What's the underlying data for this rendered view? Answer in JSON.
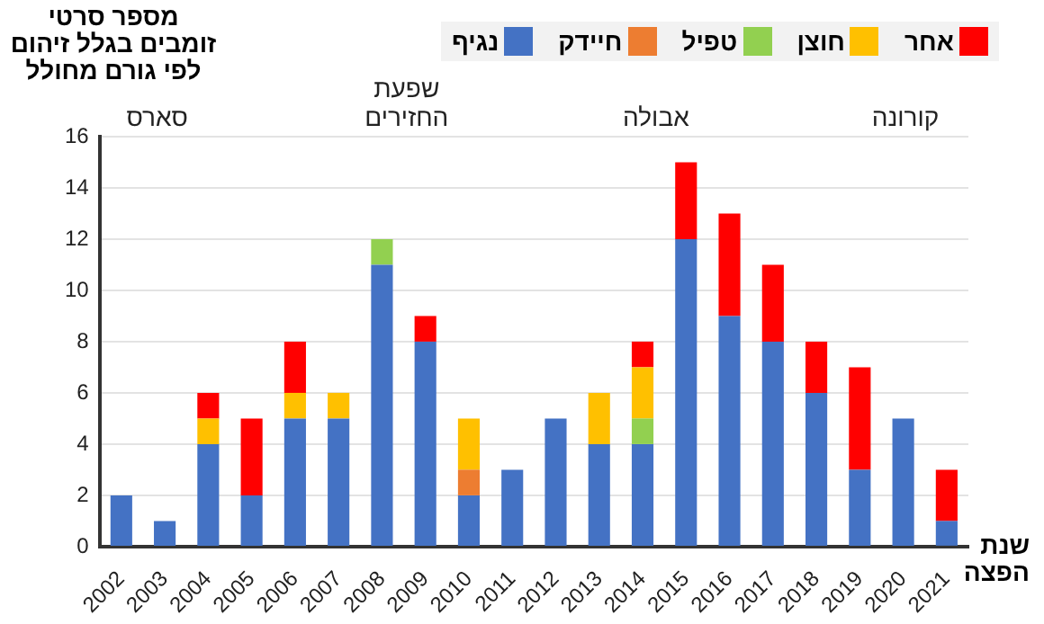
{
  "chart_data": {
    "type": "bar",
    "stacked": true,
    "ylabel": "מספר סרטי זומבים בגלל זיהום לפי גורם מחולל",
    "xlabel": "שנת הפצה",
    "categories": [
      "2002",
      "2003",
      "2004",
      "2005",
      "2006",
      "2007",
      "2008",
      "2009",
      "2010",
      "2011",
      "2012",
      "2013",
      "2014",
      "2015",
      "2016",
      "2017",
      "2018",
      "2019",
      "2020",
      "2021"
    ],
    "series": [
      {
        "name": "נגיף",
        "color": "#4472c4",
        "values": [
          2,
          1,
          4,
          2,
          5,
          5,
          11,
          8,
          2,
          3,
          5,
          4,
          4,
          12,
          9,
          8,
          6,
          3,
          5,
          1
        ]
      },
      {
        "name": "חיידק",
        "color": "#ed7d31",
        "values": [
          0,
          0,
          0,
          0,
          0,
          0,
          0,
          0,
          1,
          0,
          0,
          0,
          0,
          0,
          0,
          0,
          0,
          0,
          0,
          0
        ]
      },
      {
        "name": "טפיל",
        "color": "#92d050",
        "values": [
          0,
          0,
          0,
          0,
          0,
          0,
          1,
          0,
          0,
          0,
          0,
          0,
          1,
          0,
          0,
          0,
          0,
          0,
          0,
          0
        ]
      },
      {
        "name": "חוצן",
        "color": "#ffc000",
        "values": [
          0,
          0,
          1,
          0,
          1,
          1,
          0,
          0,
          2,
          0,
          0,
          2,
          2,
          0,
          0,
          0,
          0,
          0,
          0,
          0
        ]
      },
      {
        "name": "אחר",
        "color": "#ff0000",
        "values": [
          0,
          0,
          1,
          3,
          2,
          0,
          0,
          1,
          0,
          0,
          0,
          0,
          1,
          3,
          4,
          3,
          2,
          4,
          0,
          2
        ]
      }
    ],
    "ylim": [
      0,
      16
    ],
    "yticks": [
      0,
      2,
      4,
      6,
      8,
      10,
      12,
      14,
      16
    ],
    "grid": "y",
    "legend": "top",
    "annotations": [
      "סארס",
      "שפעת החזירים",
      "אבולה",
      "קורונה"
    ]
  }
}
